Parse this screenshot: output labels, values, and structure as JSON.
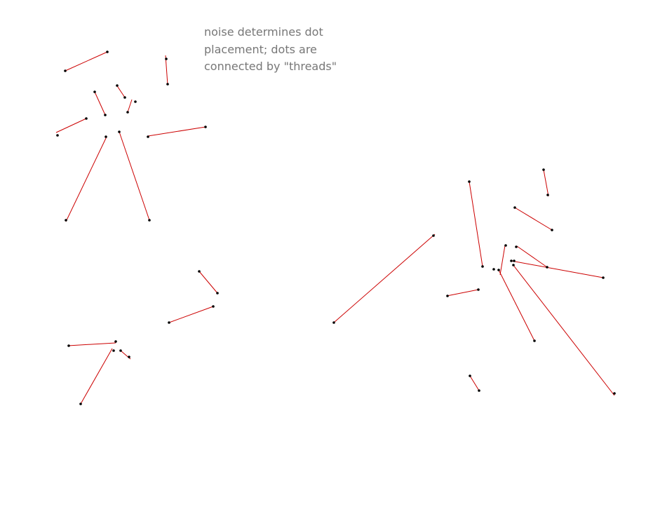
{
  "caption": "noise determines dot placement; dots are connected by \"threads\"",
  "colors": {
    "thread": "#cc0000",
    "dot": "#000000",
    "caption": "#777777",
    "background": "#ffffff"
  },
  "figure": "thread-and-dot sketch"
}
